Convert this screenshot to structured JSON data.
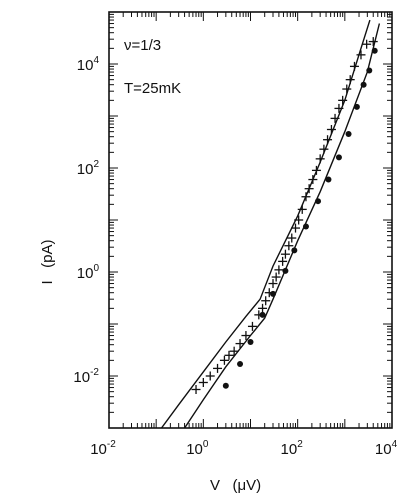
{
  "chart_data": {
    "type": "scatter",
    "title": "",
    "xlabel": "V   (μV)",
    "ylabel": "I   (pA)",
    "xscale": "log",
    "yscale": "log",
    "xlim": [
      0.01,
      10000
    ],
    "ylim": [
      0.001,
      100000
    ],
    "xticks": [
      {
        "value": 0.01,
        "base": "10",
        "exp": "-2"
      },
      {
        "value": 1,
        "base": "10",
        "exp": "0"
      },
      {
        "value": 100,
        "base": "10",
        "exp": "2"
      },
      {
        "value": 10000,
        "base": "10",
        "exp": "4"
      }
    ],
    "yticks": [
      {
        "value": 0.01,
        "base": "10",
        "exp": "-2"
      },
      {
        "value": 1,
        "base": "10",
        "exp": "0"
      },
      {
        "value": 100,
        "base": "10",
        "exp": "2"
      },
      {
        "value": 10000,
        "base": "10",
        "exp": "4"
      }
    ],
    "annotations": [
      "ν=1/3",
      "T=25mK"
    ],
    "series": [
      {
        "marker": "plus",
        "points": [
          [
            0.7,
            0.0055
          ],
          [
            1.0,
            0.0075
          ],
          [
            1.4,
            0.01
          ],
          [
            2.0,
            0.014
          ],
          [
            2.8,
            0.02
          ],
          [
            3.5,
            0.025
          ],
          [
            4.5,
            0.03
          ],
          [
            6.0,
            0.042
          ],
          [
            8.0,
            0.06
          ],
          [
            11,
            0.09
          ],
          [
            15,
            0.15
          ],
          [
            18,
            0.2
          ],
          [
            21,
            0.28
          ],
          [
            25,
            0.4
          ],
          [
            30,
            0.6
          ],
          [
            35,
            0.8
          ],
          [
            40,
            1.1
          ],
          [
            48,
            1.6
          ],
          [
            55,
            2.2
          ],
          [
            65,
            3.2
          ],
          [
            75,
            4.5
          ],
          [
            90,
            7
          ],
          [
            105,
            10
          ],
          [
            125,
            16
          ],
          [
            150,
            28
          ],
          [
            175,
            40
          ],
          [
            210,
            60
          ],
          [
            250,
            90
          ],
          [
            300,
            150
          ],
          [
            360,
            230
          ],
          [
            430,
            350
          ],
          [
            520,
            550
          ],
          [
            620,
            900
          ],
          [
            750,
            1400
          ],
          [
            900,
            2000
          ],
          [
            1100,
            3300
          ],
          [
            1300,
            5000
          ],
          [
            1600,
            9000
          ],
          [
            2200,
            15000
          ],
          [
            2900,
            24000
          ],
          [
            4000,
            27000
          ]
        ]
      },
      {
        "marker": "dot",
        "points": [
          [
            3.0,
            0.0065
          ],
          [
            6.0,
            0.017
          ],
          [
            10,
            0.045
          ],
          [
            18,
            0.15
          ],
          [
            30,
            0.38
          ],
          [
            55,
            1.05
          ],
          [
            85,
            2.6
          ],
          [
            150,
            7.5
          ],
          [
            270,
            23
          ],
          [
            450,
            60
          ],
          [
            750,
            160
          ],
          [
            1200,
            450
          ],
          [
            1800,
            1500
          ],
          [
            2500,
            4000
          ],
          [
            3300,
            7500
          ],
          [
            4300,
            18000
          ]
        ]
      },
      {
        "marker": "none",
        "line": true,
        "points": [
          [
            0.13,
            0.001
          ],
          [
            0.3,
            0.0028
          ],
          [
            1,
            0.012
          ],
          [
            3,
            0.045
          ],
          [
            8,
            0.14
          ],
          [
            16,
            0.3
          ],
          [
            30,
            1.3
          ],
          [
            100,
            12
          ],
          [
            300,
            130
          ],
          [
            1000,
            2000
          ],
          [
            2200,
            20000
          ],
          [
            3400,
            70000
          ]
        ]
      },
      {
        "marker": "none",
        "line": true,
        "points": [
          [
            0.4,
            0.001
          ],
          [
            1,
            0.0035
          ],
          [
            3,
            0.015
          ],
          [
            10,
            0.06
          ],
          [
            20,
            0.13
          ],
          [
            30,
            0.3
          ],
          [
            100,
            4
          ],
          [
            300,
            35
          ],
          [
            1000,
            500
          ],
          [
            3000,
            7000
          ],
          [
            5400,
            60000
          ]
        ]
      }
    ]
  }
}
